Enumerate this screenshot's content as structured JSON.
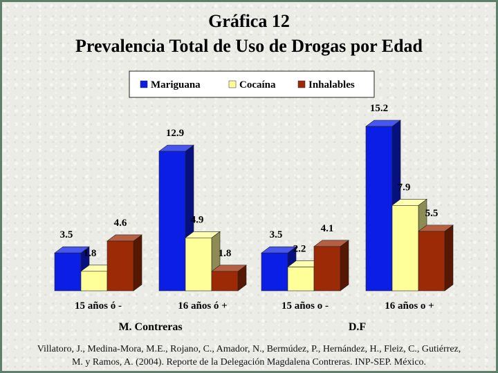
{
  "title": "Gráfica 12",
  "subtitle": "Prevalencia Total de Uso de Drogas por Edad",
  "citation": {
    "line1": "Villatoro, J., Medina-Mora, M.E., Rojano, C., Amador, N., Bermúdez, P., Hernández, H., Fleiz, C., Gutiérrez,",
    "line2": "M. y Ramos, A. (2004). Reporte de la Delegación Magdalena Contreras. INP-SEP. México."
  },
  "chart_data": {
    "type": "bar",
    "categories": [
      "15 años ó -",
      "16 años ó +",
      "15 años o -",
      "16 años o +"
    ],
    "groups": [
      {
        "label": "M. Contreras",
        "categories": [
          0,
          1
        ]
      },
      {
        "label": "D.F",
        "categories": [
          2,
          3
        ]
      }
    ],
    "series": [
      {
        "name": "Mariguana",
        "values": [
          3.5,
          12.9,
          3.5,
          15.2
        ],
        "color": "#0a1ee6"
      },
      {
        "name": "Cocaína",
        "values": [
          1.8,
          4.9,
          2.2,
          7.9
        ],
        "color": "#ffff99"
      },
      {
        "name": "Inhalables",
        "values": [
          4.6,
          1.8,
          4.1,
          5.5
        ],
        "color": "#9c2a06"
      }
    ],
    "value_labels": [
      [
        "3.5",
        "12.9",
        "3.5",
        "15.2"
      ],
      [
        "1.8",
        "4.9",
        "2.2",
        "7.9"
      ],
      [
        "4.6",
        "1.8",
        "4.1",
        "5.5"
      ]
    ],
    "ylim": [
      0,
      16
    ],
    "grid": false,
    "legend": "top"
  }
}
